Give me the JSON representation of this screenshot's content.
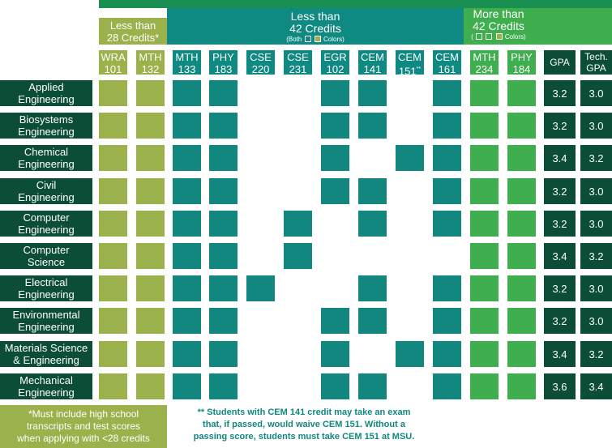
{
  "headers": {
    "group1": {
      "title": "Less than\n28 Credits*"
    },
    "group2": {
      "title": "Less than\n42 Credits",
      "sub_prefix": "(Both",
      "sub_suffix": "Colors)"
    },
    "group3": {
      "title": "More than\n42 Credits",
      "sub_prefix": "(",
      "sub_suffix": "Colors)"
    }
  },
  "courses": [
    {
      "label": "WRA\n101",
      "group": "olive"
    },
    {
      "label": "MTH\n132",
      "group": "olive"
    },
    {
      "label": "MTH\n133",
      "group": "teal"
    },
    {
      "label": "PHY\n183",
      "group": "teal"
    },
    {
      "label": "CSE\n220",
      "group": "teal"
    },
    {
      "label": "CSE\n231",
      "group": "teal"
    },
    {
      "label": "EGR\n102",
      "group": "teal"
    },
    {
      "label": "CEM\n141",
      "group": "teal"
    },
    {
      "label": "CEM",
      "label2": "151",
      "sup": "**",
      "group": "teal"
    },
    {
      "label": "CEM\n161",
      "group": "teal"
    },
    {
      "label": "MTH\n234",
      "group": "green"
    },
    {
      "label": "PHY\n184",
      "group": "green"
    }
  ],
  "gpa_header": "GPA",
  "tech_gpa_header": "Tech.\nGPA",
  "majors": [
    {
      "name": "Applied\nEngineering",
      "gpa": "3.2",
      "tech_gpa": "3.0",
      "req": [
        1,
        1,
        1,
        1,
        0,
        0,
        1,
        1,
        0,
        1,
        1,
        1
      ]
    },
    {
      "name": "Biosystems\nEngineering",
      "gpa": "3.2",
      "tech_gpa": "3.0",
      "req": [
        1,
        1,
        1,
        1,
        0,
        0,
        1,
        1,
        0,
        1,
        1,
        1
      ]
    },
    {
      "name": "Chemical\nEngineering",
      "gpa": "3.4",
      "tech_gpa": "3.2",
      "req": [
        1,
        1,
        1,
        1,
        0,
        0,
        1,
        0,
        1,
        1,
        1,
        1
      ]
    },
    {
      "name": "Civil\nEngineering",
      "gpa": "3.2",
      "tech_gpa": "3.0",
      "req": [
        1,
        1,
        1,
        1,
        0,
        0,
        1,
        1,
        0,
        1,
        1,
        1
      ]
    },
    {
      "name": "Computer\nEngineering",
      "gpa": "3.2",
      "tech_gpa": "3.0",
      "req": [
        1,
        1,
        1,
        1,
        0,
        1,
        0,
        1,
        0,
        1,
        1,
        1
      ]
    },
    {
      "name": "Computer\nScience",
      "gpa": "3.4",
      "tech_gpa": "3.2",
      "req": [
        1,
        1,
        1,
        1,
        0,
        1,
        0,
        0,
        0,
        0,
        1,
        1
      ]
    },
    {
      "name": "Electrical\nEngineering",
      "gpa": "3.2",
      "tech_gpa": "3.0",
      "req": [
        1,
        1,
        1,
        1,
        1,
        0,
        0,
        1,
        0,
        1,
        1,
        1
      ]
    },
    {
      "name": "Environmental\nEngineering",
      "gpa": "3.2",
      "tech_gpa": "3.0",
      "req": [
        1,
        1,
        1,
        1,
        0,
        0,
        1,
        1,
        0,
        1,
        1,
        1
      ]
    },
    {
      "name": "Materials Science\n& Engineering",
      "gpa": "3.4",
      "tech_gpa": "3.2",
      "req": [
        1,
        1,
        1,
        1,
        0,
        0,
        1,
        0,
        1,
        1,
        1,
        1
      ]
    },
    {
      "name": "Mechanical\nEngineering",
      "gpa": "3.6",
      "tech_gpa": "3.4",
      "req": [
        1,
        1,
        1,
        1,
        0,
        0,
        1,
        1,
        0,
        1,
        1,
        1
      ]
    }
  ],
  "footnotes": {
    "left": "*Must include high school\ntranscripts and test scores\nwhen applying with <28 credits",
    "right": "** Students with CEM 141 credit may take an exam\nthat, if passed, would waive CEM 151. Without a\npassing score, students must take CEM 151 at MSU."
  },
  "colors": {
    "olive": "#9bb14c",
    "teal": "#11877f",
    "teal_header": "#0f8a82",
    "green": "#3fae4f",
    "dark": "#0c4d38"
  }
}
